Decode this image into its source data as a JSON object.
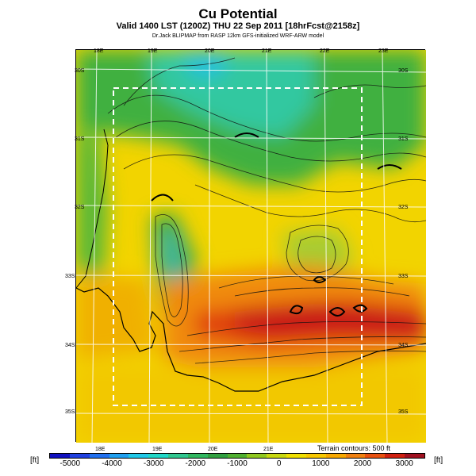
{
  "header": {
    "title": "Cu Potential",
    "subtitle": "Valid 1400 LST (1200Z) THU 22 Sep 2011 [18hrFcst@2158z]",
    "credit": "Dr.Jack BLIPMAP from RASP 12km GFS-initialized WRF-ARW model"
  },
  "map": {
    "lon_labels_top": [
      "18E",
      "19E",
      "20E",
      "21E",
      "22E",
      "23E"
    ],
    "lon_labels_bottom": [
      "18E",
      "19E",
      "20E",
      "21E"
    ],
    "lat_labels": [
      "30S",
      "31S",
      "32S",
      "33S",
      "34S",
      "35S"
    ],
    "forecast_region": "dashed rectangle",
    "terrain_note": "Terrain contours: 500 ft",
    "colors": {
      "very_low": "#2020d0",
      "low": "#20c8e8",
      "mid_low": "#30b040",
      "zero": "#f0e000",
      "high": "#f07010",
      "very_high": "#c01020"
    }
  },
  "colorbar": {
    "unit_left": "[ft]",
    "unit_right": "[ft]",
    "ticks": [
      "-5000",
      "-4000",
      "-3000",
      "-2000",
      "-1000",
      "0",
      "1000",
      "2000",
      "3000"
    ],
    "range": [
      -5500,
      3500
    ],
    "colors": [
      "#1010c0",
      "#2040e0",
      "#2070f0",
      "#20a0f0",
      "#20c8e8",
      "#20d8c8",
      "#30c890",
      "#30b860",
      "#30a040",
      "#50b030",
      "#90c820",
      "#c8d810",
      "#f0e000",
      "#f8c800",
      "#f8a800",
      "#f08010",
      "#e85010",
      "#d02010",
      "#a01020"
    ]
  }
}
